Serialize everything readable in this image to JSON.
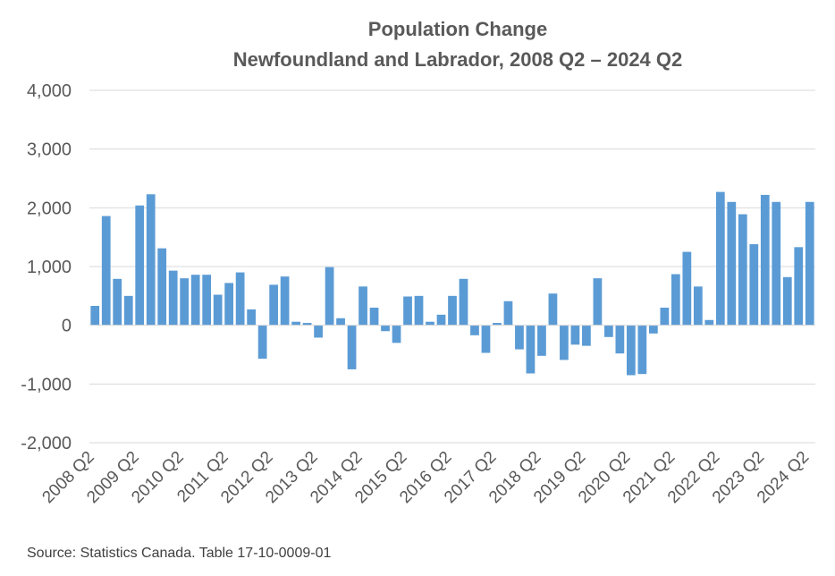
{
  "chart_data": {
    "type": "bar",
    "title": "Population Change",
    "subtitle": "Newfoundland and Labrador, 2008 Q2 – 2024 Q2",
    "xlabel": "",
    "ylabel": "",
    "ylim": [
      -2000,
      4000
    ],
    "yticks": [
      4000,
      3000,
      2000,
      1000,
      0,
      -1000,
      -2000
    ],
    "ytick_labels": [
      "4,000",
      "3,000",
      "2,000",
      "1,000",
      "0",
      "-1,000",
      "-2,000"
    ],
    "grid": true,
    "legend": "none",
    "bar_color": "#5b9bd5",
    "x_tick_labels": [
      "2008 Q2",
      "2009 Q2",
      "2010 Q2",
      "2011 Q2",
      "2012 Q2",
      "2013 Q2",
      "2014 Q2",
      "2015 Q2",
      "2016 Q2",
      "2017 Q2",
      "2018 Q2",
      "2019 Q2",
      "2020 Q2",
      "2021 Q2",
      "2022 Q2",
      "2023 Q2",
      "2024 Q2"
    ],
    "categories": [
      "2008 Q2",
      "2008 Q3",
      "2008 Q4",
      "2009 Q1",
      "2009 Q2",
      "2009 Q3",
      "2009 Q4",
      "2010 Q1",
      "2010 Q2",
      "2010 Q3",
      "2010 Q4",
      "2011 Q1",
      "2011 Q2",
      "2011 Q3",
      "2011 Q4",
      "2012 Q1",
      "2012 Q2",
      "2012 Q3",
      "2012 Q4",
      "2013 Q1",
      "2013 Q2",
      "2013 Q3",
      "2013 Q4",
      "2014 Q1",
      "2014 Q2",
      "2014 Q3",
      "2014 Q4",
      "2015 Q1",
      "2015 Q2",
      "2015 Q3",
      "2015 Q4",
      "2016 Q1",
      "2016 Q2",
      "2016 Q3",
      "2016 Q4",
      "2017 Q1",
      "2017 Q2",
      "2017 Q3",
      "2017 Q4",
      "2018 Q1",
      "2018 Q2",
      "2018 Q3",
      "2018 Q4",
      "2019 Q1",
      "2019 Q2",
      "2019 Q3",
      "2019 Q4",
      "2020 Q1",
      "2020 Q2",
      "2020 Q3",
      "2020 Q4",
      "2021 Q1",
      "2021 Q2",
      "2021 Q3",
      "2021 Q4",
      "2022 Q1",
      "2022 Q2",
      "2022 Q3",
      "2022 Q4",
      "2023 Q1",
      "2023 Q2",
      "2023 Q3",
      "2023 Q4",
      "2024 Q1",
      "2024 Q2"
    ],
    "values": [
      330,
      1860,
      790,
      500,
      2040,
      2230,
      1310,
      930,
      800,
      860,
      860,
      520,
      720,
      900,
      270,
      -570,
      690,
      830,
      60,
      40,
      -210,
      990,
      120,
      -750,
      660,
      300,
      -100,
      -300,
      490,
      500,
      60,
      180,
      500,
      790,
      -170,
      -470,
      40,
      410,
      -410,
      -820,
      -520,
      540,
      -590,
      -330,
      -350,
      800,
      -200,
      -480,
      -850,
      -830,
      -140,
      300,
      870,
      1250,
      660,
      90,
      2270,
      2100,
      1890,
      1380,
      2220,
      2100,
      820,
      1330,
      2100
    ]
  },
  "source": "Source: Statistics Canada. Table 17-10-0009-01"
}
